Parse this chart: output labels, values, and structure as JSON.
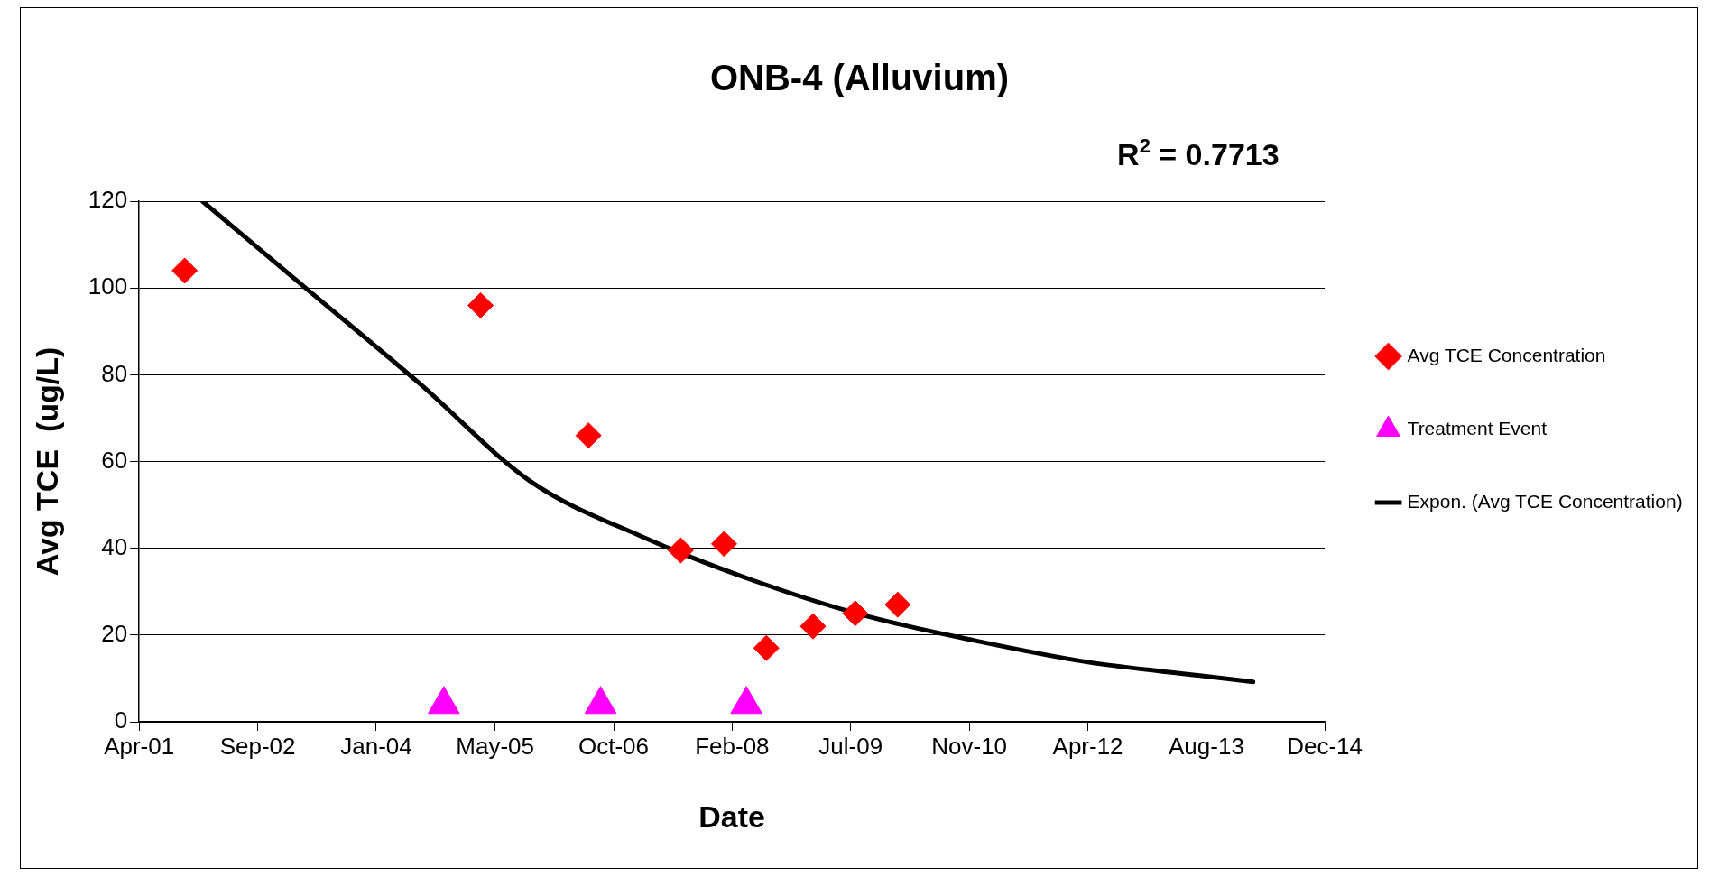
{
  "chart_data": {
    "type": "scatter",
    "title": "ONB-4 (Alluvium)",
    "xlabel": "Date",
    "ylabel": "Avg TCE  (ug/L)",
    "xlim": [
      "2001-04-20",
      "2014-12-28"
    ],
    "xticks": [
      {
        "value": "2001-04-20",
        "label": "Apr-01"
      },
      {
        "value": "2002-09-02",
        "label": "Sep-02"
      },
      {
        "value": "2004-01-15",
        "label": "Jan-04"
      },
      {
        "value": "2005-05-30",
        "label": "May-05"
      },
      {
        "value": "2006-10-12",
        "label": "Oct-06"
      },
      {
        "value": "2008-02-24",
        "label": "Feb-08"
      },
      {
        "value": "2009-07-08",
        "label": "Jul-09"
      },
      {
        "value": "2010-11-20",
        "label": "Nov-10"
      },
      {
        "value": "2012-04-03",
        "label": "Apr-12"
      },
      {
        "value": "2013-08-16",
        "label": "Aug-13"
      },
      {
        "value": "2014-12-28",
        "label": "Dec-14"
      }
    ],
    "ylim": [
      0,
      120
    ],
    "yticks": [
      0,
      20,
      40,
      60,
      80,
      100,
      120
    ],
    "grid": "y",
    "legend": "right",
    "annotations": [
      "R$^{2}$ = 0.7713"
    ],
    "series": [
      {
        "name": "Avg TCE Concentration",
        "type": "scatter",
        "marker": "diamond",
        "color": "#ff0000",
        "x": [
          "2001-10-29",
          "2005-03-30",
          "2006-06-28",
          "2007-07-22",
          "2008-01-21",
          "2008-07-17",
          "2009-01-30",
          "2009-07-27",
          "2010-01-22"
        ],
        "values": [
          104,
          96,
          66,
          39.5,
          41,
          17,
          22,
          25,
          27
        ]
      },
      {
        "name": "Treatment Event",
        "type": "scatter",
        "marker": "triangle",
        "color": "#ff00ff",
        "x": [
          "2004-10-26",
          "2006-08-18",
          "2008-04-24"
        ],
        "values": [
          4,
          4,
          4
        ]
      },
      {
        "name": "Expon. (Avg TCE Concentration)",
        "type": "line",
        "marker": "none",
        "line_style": "solid",
        "color": "#000000",
        "x": [
          "2002-01-12",
          "2003-04-03",
          "2004-07-15",
          "2005-10-27",
          "2007-02-08",
          "2008-05-22",
          "2009-09-03",
          "2010-12-16",
          "2012-03-29",
          "2013-07-11",
          "2014-03-01"
        ],
        "values": [
          120,
          99.5,
          78,
          55.4,
          42.7,
          32.6,
          24.5,
          18.7,
          13.8,
          10.7,
          9.2
        ]
      }
    ]
  }
}
